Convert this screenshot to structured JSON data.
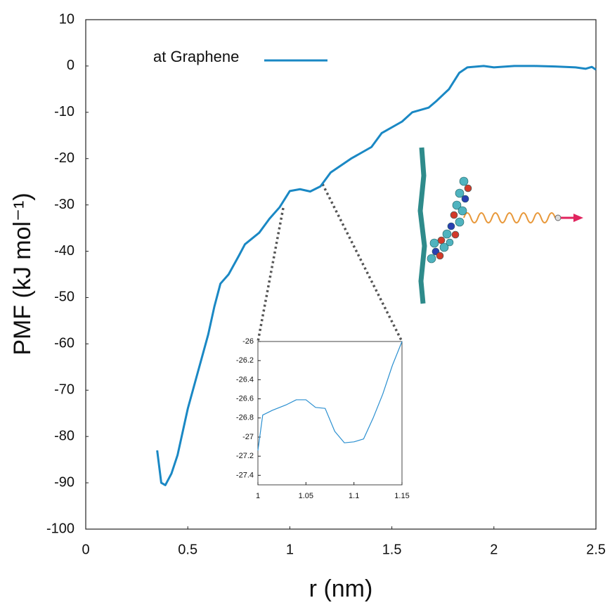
{
  "chart_data": [
    {
      "type": "line",
      "x_label": "r (nm)",
      "y_label": "PMF (kJ mol⁻¹)",
      "xlim": [
        0,
        2.5
      ],
      "ylim": [
        -100,
        10
      ],
      "xticks": [
        0,
        0.5,
        1,
        1.5,
        2,
        2.5
      ],
      "yticks": [
        10,
        0,
        -10,
        -20,
        -30,
        -40,
        -50,
        -60,
        -70,
        -80,
        -90,
        -100
      ],
      "legend": "upper left",
      "series": [
        {
          "name": "at Graphene",
          "color": "#1a88c4",
          "x": [
            0.35,
            0.37,
            0.39,
            0.42,
            0.45,
            0.48,
            0.5,
            0.55,
            0.6,
            0.63,
            0.66,
            0.7,
            0.75,
            0.78,
            0.85,
            0.9,
            0.95,
            1.0,
            1.05,
            1.1,
            1.15,
            1.2,
            1.3,
            1.4,
            1.45,
            1.55,
            1.6,
            1.68,
            1.72,
            1.78,
            1.83,
            1.87,
            1.95,
            2.0,
            2.1,
            2.2,
            2.3,
            2.4,
            2.45,
            2.48,
            2.5
          ],
          "values": [
            -83,
            -90,
            -90.5,
            -88,
            -84,
            -78,
            -74,
            -66,
            -58,
            -52,
            -47,
            -45,
            -41,
            -38.5,
            -36,
            -33,
            -30.5,
            -27,
            -26.6,
            -27.1,
            -26,
            -23,
            -20,
            -17.5,
            -14.5,
            -12,
            -10,
            -9,
            -7.5,
            -5,
            -1.5,
            -0.3,
            0,
            -0.3,
            0,
            0,
            -0.1,
            -0.3,
            -0.6,
            -0.2,
            -0.8
          ]
        }
      ]
    },
    {
      "type": "line",
      "xlim": [
        1,
        1.15
      ],
      "ylim": [
        -27.5,
        -26
      ],
      "xticks": [
        1,
        1.05,
        1.1,
        1.15
      ],
      "yticks": [
        -26,
        -26.2,
        -26.4,
        -26.6,
        -26.8,
        -27,
        -27.2,
        -27.4
      ],
      "series": [
        {
          "color": "#2a8fd0",
          "x": [
            1,
            1.005,
            1.015,
            1.03,
            1.04,
            1.05,
            1.06,
            1.07,
            1.08,
            1.09,
            1.1,
            1.11,
            1.12,
            1.13,
            1.14,
            1.15
          ],
          "values": [
            -27.14,
            -26.77,
            -26.72,
            -26.66,
            -26.61,
            -26.61,
            -26.69,
            -26.7,
            -26.94,
            -27.06,
            -27.05,
            -27.02,
            -26.8,
            -26.55,
            -26.25,
            -26
          ]
        }
      ]
    }
  ]
}
